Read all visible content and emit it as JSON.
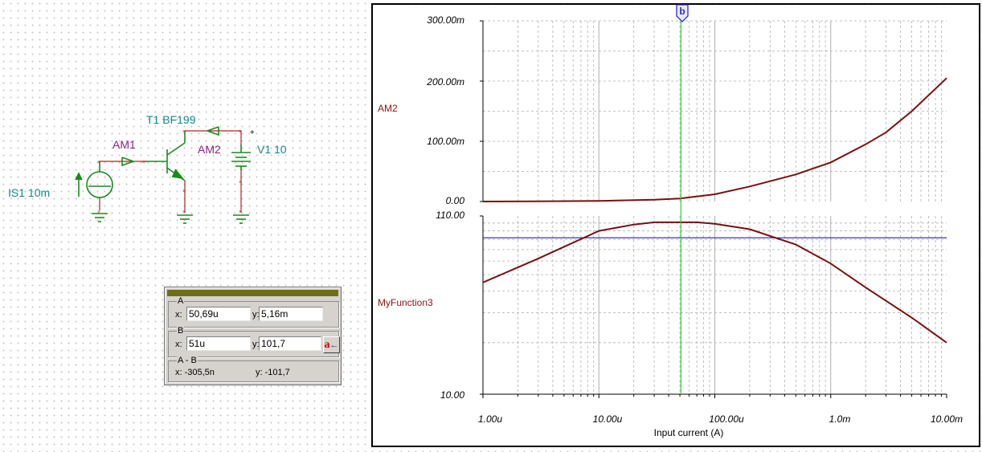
{
  "schematic": {
    "is1_label": "IS1 10m",
    "am1_label": "AM1",
    "t1_label": "T1 BF199",
    "am2_label": "AM2",
    "v1_label": "V1 10",
    "plus_sign": "+"
  },
  "cursor_panel": {
    "a": {
      "title": "A",
      "x_label": "x:",
      "y_label": "y:",
      "x_value": "50,69u",
      "y_value": "5,16m"
    },
    "b": {
      "title": "B",
      "x_label": "x:",
      "y_label": "y:",
      "x_value": "51u",
      "y_value": "101,7",
      "button_label": "a"
    },
    "diff": {
      "title": "A - B",
      "x_text": "x:  -305,5n",
      "y_text": "y:  -101,7"
    }
  },
  "graph": {
    "cursor_label": "b",
    "x_axis_title": "Input current (A)",
    "x_ticks": [
      "1.00u",
      "10.00u",
      "100.00u",
      "1.0m",
      "10.00m"
    ],
    "top_plot": {
      "series_name": "AM2",
      "y_ticks": [
        "300.00m",
        "200.00m",
        "100.00m",
        "0.00"
      ]
    },
    "bottom_plot": {
      "series_name": "MyFunction3",
      "y_ticks": [
        "110.00",
        "10.00"
      ]
    },
    "colors": {
      "trace": "#7a1010",
      "cursor": "#2ecc40",
      "hline": "#2020a0",
      "grid": "#b0b0b0"
    }
  },
  "chart_data": [
    {
      "type": "line",
      "xscale": "log",
      "xlim": [
        1e-06,
        0.01
      ],
      "ylim": [
        0,
        0.3
      ],
      "xlabel": "Input current (A)",
      "ylabel": "",
      "series": [
        {
          "name": "AM2",
          "x": [
            1e-06,
            3e-06,
            1e-05,
            3e-05,
            5e-05,
            0.0001,
            0.0002,
            0.0005,
            0.001,
            0.002,
            0.003,
            0.005,
            0.01
          ],
          "y": [
            0.0,
            0.0003,
            0.001,
            0.003,
            0.005,
            0.012,
            0.025,
            0.045,
            0.065,
            0.095,
            0.115,
            0.15,
            0.205
          ]
        }
      ]
    },
    {
      "type": "line",
      "xscale": "log",
      "yscale": "log",
      "xlim": [
        1e-06,
        0.01
      ],
      "ylim": [
        10,
        110
      ],
      "xlabel": "Input current (A)",
      "ylabel": "",
      "series": [
        {
          "name": "MyFunction3",
          "x": [
            1e-06,
            3e-06,
            1e-05,
            2e-05,
            3e-05,
            5e-05,
            7e-05,
            0.0001,
            0.0002,
            0.0005,
            0.001,
            0.002,
            0.005,
            0.01
          ],
          "y": [
            45,
            62,
            90,
            98,
            101,
            101,
            101,
            99,
            92,
            75,
            58,
            42,
            28,
            20
          ]
        }
      ],
      "reference_line_y": 82
    }
  ]
}
